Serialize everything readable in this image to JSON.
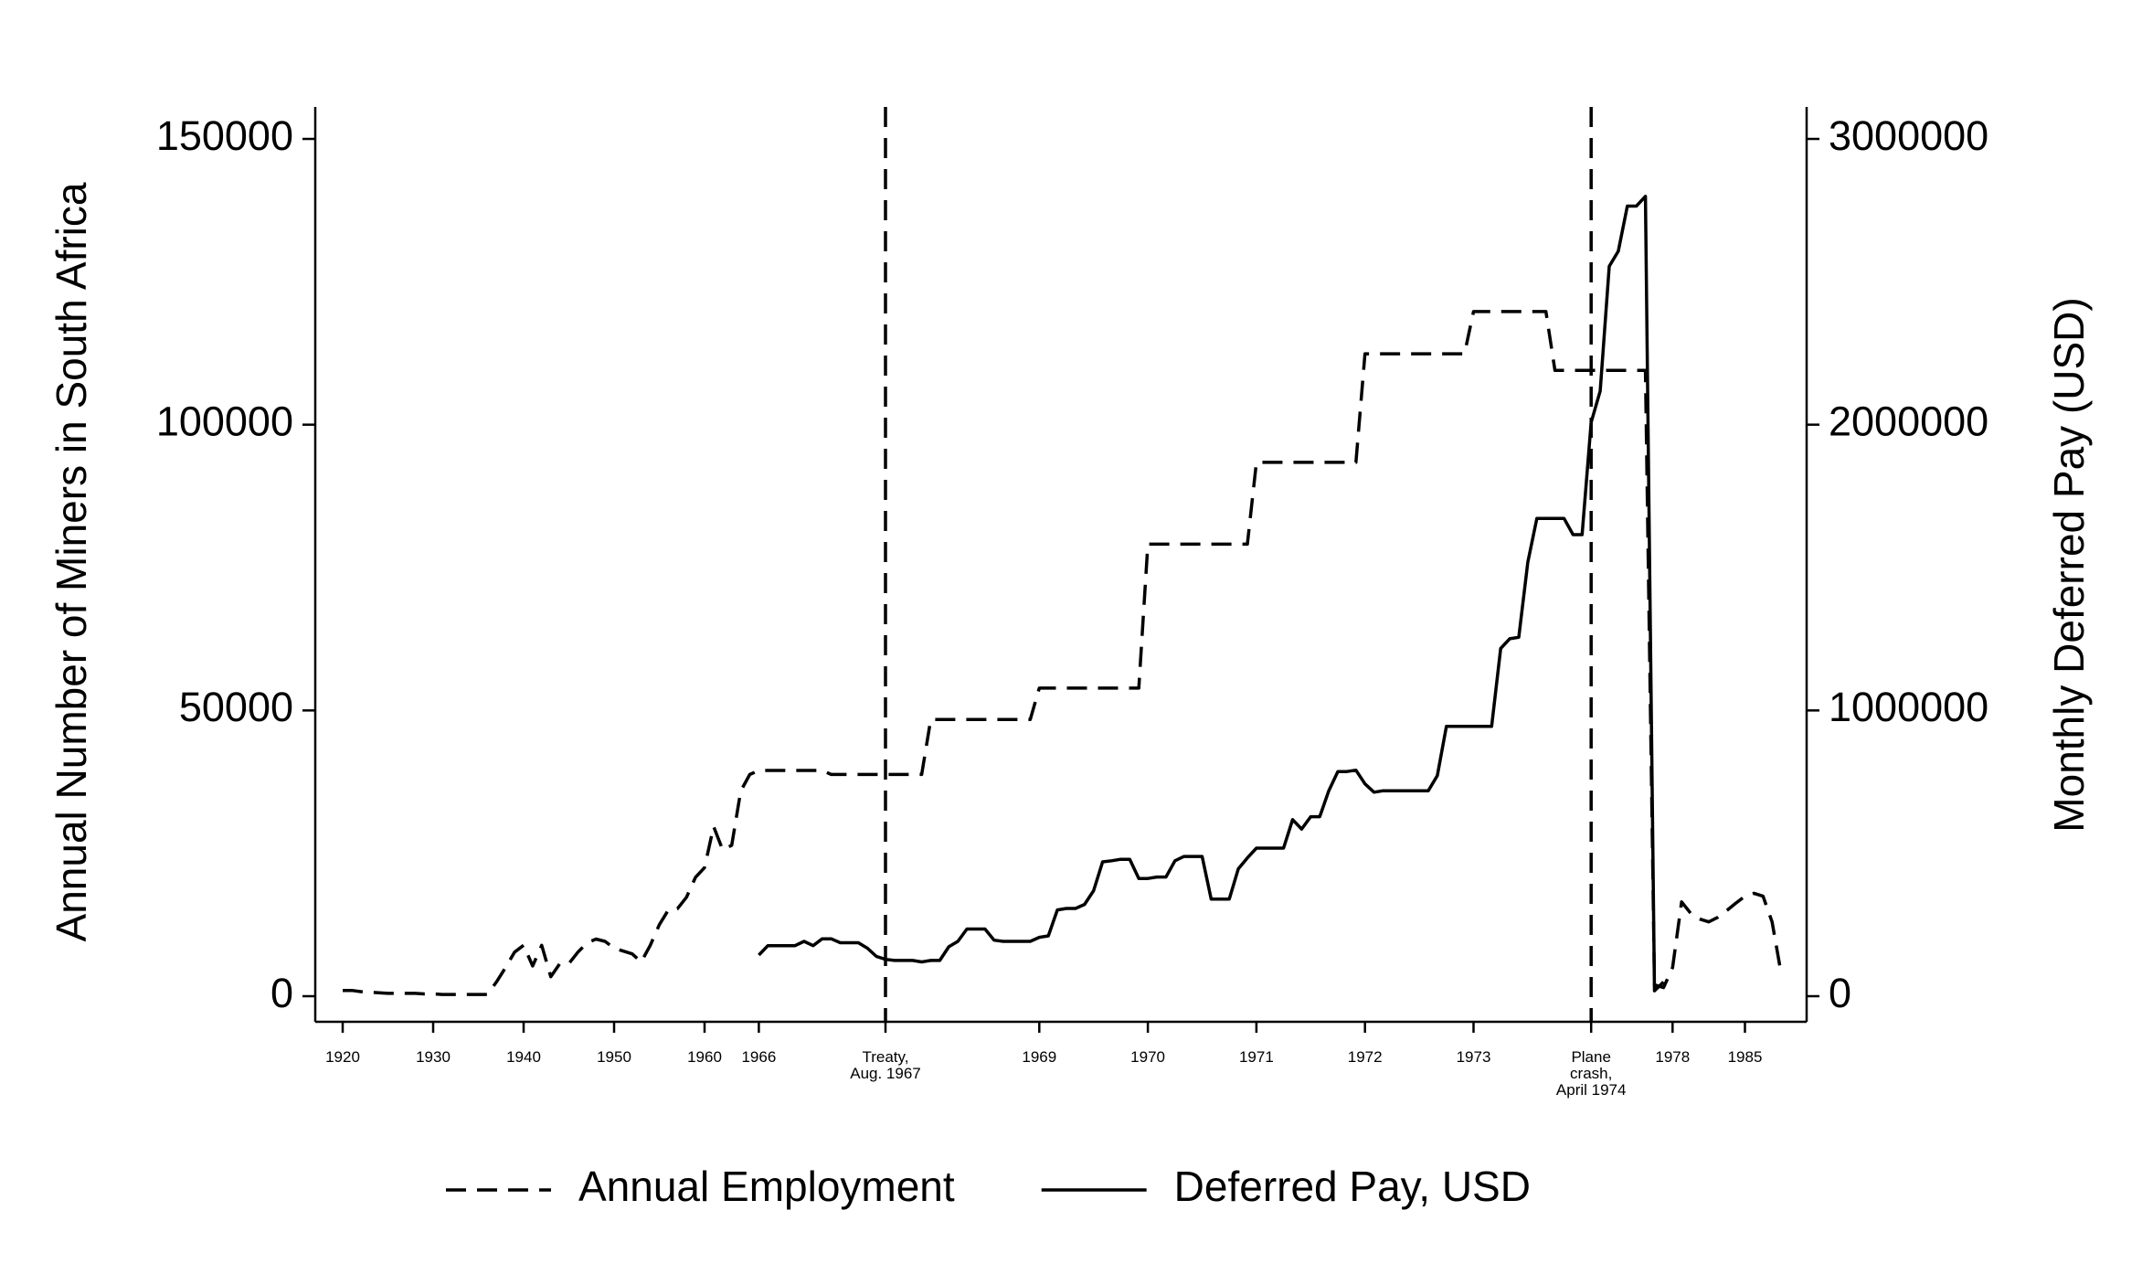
{
  "chart_data": {
    "type": "line",
    "y_label": "Annual Number of Miners in South Africa",
    "y2_label": "Monthly Deferred Pay (USD)",
    "categories": [
      "1920",
      null,
      null,
      null,
      null,
      null,
      null,
      null,
      null,
      null,
      "1930",
      null,
      null,
      null,
      null,
      null,
      null,
      null,
      null,
      null,
      "1940",
      null,
      null,
      null,
      null,
      null,
      null,
      null,
      null,
      null,
      "1950",
      null,
      null,
      null,
      null,
      null,
      null,
      null,
      null,
      null,
      "1960",
      null,
      null,
      null,
      null,
      null,
      "1966",
      null,
      null,
      null,
      null,
      null,
      null,
      null,
      null,
      null,
      null,
      null,
      null,
      null,
      "Treaty,\nAug. 1967",
      null,
      null,
      null,
      null,
      null,
      null,
      null,
      null,
      null,
      null,
      null,
      null,
      null,
      null,
      null,
      null,
      "1969",
      null,
      null,
      null,
      null,
      null,
      null,
      null,
      null,
      null,
      null,
      null,
      "1970",
      null,
      null,
      null,
      null,
      null,
      null,
      null,
      null,
      null,
      null,
      null,
      "1971",
      null,
      null,
      null,
      null,
      null,
      null,
      null,
      null,
      null,
      null,
      null,
      "1972",
      null,
      null,
      null,
      null,
      null,
      null,
      null,
      null,
      null,
      null,
      null,
      "1973",
      null,
      null,
      null,
      null,
      null,
      null,
      null,
      null,
      null,
      null,
      null,
      null,
      "Plane\ncrash,\nApril 1974",
      null,
      null,
      null,
      null,
      null,
      null,
      null,
      null,
      "1978",
      null,
      null,
      null,
      null,
      null,
      null,
      null,
      "1985",
      null,
      null,
      null,
      null
    ],
    "series": [
      {
        "name": "Annual Employment",
        "color": "#000000",
        "dash": true,
        "values": [
          1000,
          1000,
          800,
          700,
          600,
          500,
          500,
          500,
          500,
          400,
          400,
          300,
          300,
          300,
          300,
          300,
          300,
          2500,
          5000,
          7700,
          8900,
          5300,
          8900,
          3400,
          5700,
          5700,
          7700,
          9300,
          10000,
          9600,
          8400,
          7900,
          7400,
          6000,
          8900,
          12500,
          15100,
          15300,
          17300,
          20800,
          22500,
          29700,
          25600,
          26400,
          35900,
          38800,
          39500,
          39500,
          39500,
          39500,
          39500,
          39500,
          39500,
          39500,
          38800,
          38800,
          38800,
          38800,
          38800,
          38800,
          38800,
          38800,
          38800,
          38800,
          38800,
          48400,
          48400,
          48400,
          48400,
          48400,
          48400,
          48400,
          48400,
          48400,
          48400,
          48400,
          48400,
          53900,
          53900,
          53900,
          53900,
          53900,
          53900,
          53900,
          53900,
          53900,
          53900,
          53900,
          53900,
          79100,
          79100,
          79100,
          79100,
          79100,
          79100,
          79100,
          79100,
          79100,
          79100,
          79100,
          79100,
          93400,
          93400,
          93400,
          93400,
          93400,
          93400,
          93400,
          93400,
          93400,
          93400,
          93400,
          93400,
          112400,
          112400,
          112400,
          112400,
          112400,
          112400,
          112400,
          112400,
          112400,
          112400,
          112400,
          112400,
          119800,
          119800,
          119800,
          119800,
          119800,
          119800,
          119800,
          119800,
          119800,
          109500,
          109500,
          109500,
          109500,
          109500,
          109500,
          109500,
          109500,
          109500,
          109500,
          109500,
          2000,
          1500,
          5000,
          16500,
          14500,
          13500,
          13000,
          13800,
          15000,
          16300,
          17500,
          18000,
          17500,
          13000,
          4000
        ]
      },
      {
        "name": "Deferred Pay, USD",
        "color": "#000000",
        "dash": false,
        "axis": "y2",
        "values": [
          null,
          null,
          null,
          null,
          null,
          null,
          null,
          null,
          null,
          null,
          null,
          null,
          null,
          null,
          null,
          null,
          null,
          null,
          null,
          null,
          null,
          null,
          null,
          null,
          null,
          null,
          null,
          null,
          null,
          null,
          null,
          null,
          null,
          null,
          null,
          null,
          null,
          null,
          null,
          null,
          null,
          null,
          null,
          null,
          null,
          null,
          144000,
          177000,
          177000,
          177000,
          177000,
          192000,
          177000,
          201000,
          201000,
          187000,
          187000,
          187000,
          168000,
          139000,
          129000,
          125000,
          125000,
          125000,
          120000,
          125000,
          125000,
          173000,
          192000,
          235000,
          235000,
          235000,
          196000,
          192000,
          192000,
          192000,
          192000,
          206000,
          211000,
          302000,
          307000,
          307000,
          321000,
          369000,
          470000,
          474000,
          479000,
          479000,
          412000,
          412000,
          417000,
          417000,
          474000,
          489000,
          489000,
          489000,
          340000,
          340000,
          340000,
          446000,
          484000,
          518000,
          518000,
          518000,
          518000,
          618000,
          585000,
          628000,
          628000,
          719000,
          786000,
          786000,
          791000,
          743000,
          714000,
          719000,
          719000,
          719000,
          719000,
          719000,
          719000,
          772000,
          944000,
          944000,
          944000,
          944000,
          944000,
          944000,
          1217000,
          1251000,
          1256000,
          1519000,
          1672000,
          1672000,
          1672000,
          1672000,
          1615000,
          1615000,
          2008000,
          2118000,
          2554000,
          2607000,
          2765000,
          2765000,
          2799000,
          19000,
          50000,
          null,
          null,
          null,
          null,
          null,
          null,
          null,
          null,
          null,
          null,
          null,
          null,
          null
        ]
      }
    ],
    "ylim": [
      0,
      150000
    ],
    "yticks": [
      0,
      50000,
      100000,
      150000
    ],
    "y2lim": [
      0,
      3000000
    ],
    "y2ticks": [
      0,
      1000000,
      2000000,
      3000000
    ],
    "vlines_at": [
      60,
      138
    ],
    "grid": false,
    "legend": "bottom"
  }
}
